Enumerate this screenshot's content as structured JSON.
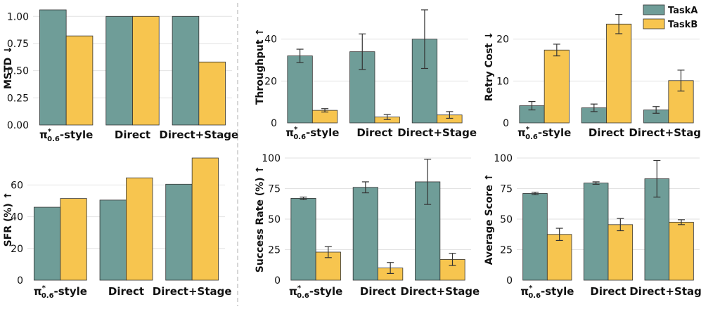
{
  "colors": {
    "TaskA": "#6f9d98",
    "TaskB": "#f7c54f",
    "errorbar": "#333333",
    "grid": "#e2e2e2",
    "separator": "#c8c8c8"
  },
  "legend": {
    "position": "top-right",
    "entries": [
      "TaskA",
      "TaskB"
    ]
  },
  "chart_data": [
    {
      "id": "mstd",
      "type": "bar",
      "ylabel": "MSTD ↓",
      "categories": [
        "π*0.6-style",
        "Direct",
        "Direct+Stage"
      ],
      "ylim": [
        0,
        1.06
      ],
      "yticks": [
        0.0,
        0.25,
        0.5,
        0.75,
        1.0
      ],
      "ytick_decimals": 2,
      "grid": true,
      "series": [
        {
          "name": "TaskA",
          "values": [
            1.06,
            1.0,
            1.0
          ]
        },
        {
          "name": "TaskB",
          "values": [
            0.82,
            1.0,
            0.58
          ]
        }
      ]
    },
    {
      "id": "throughput",
      "type": "bar",
      "ylabel": "Throughput ↑",
      "categories": [
        "π*0.6-style",
        "Direct",
        "Direct+Stage"
      ],
      "ylim": [
        0,
        54
      ],
      "yticks": [
        0,
        20,
        40
      ],
      "ytick_decimals": 0,
      "grid": true,
      "series": [
        {
          "name": "TaskA",
          "values": [
            32,
            34,
            40
          ],
          "errors": [
            3.2,
            8.5,
            14
          ]
        },
        {
          "name": "TaskB",
          "values": [
            6,
            2.8,
            3.8
          ],
          "errors": [
            0.8,
            1.2,
            1.6
          ]
        }
      ]
    },
    {
      "id": "retry-cost",
      "type": "bar",
      "ylabel": "Retry Cost ↓",
      "categories": [
        "π*0.6-style",
        "Direct",
        "Direct+Stage"
      ],
      "ylim": [
        0,
        27
      ],
      "yticks": [
        0,
        10,
        20
      ],
      "ytick_decimals": 0,
      "grid": true,
      "series": [
        {
          "name": "TaskA",
          "values": [
            4.1,
            3.6,
            3.1
          ],
          "errors": [
            1.0,
            0.9,
            0.8
          ]
        },
        {
          "name": "TaskB",
          "values": [
            17.4,
            23.6,
            10.1
          ],
          "errors": [
            1.4,
            2.3,
            2.5
          ]
        }
      ]
    },
    {
      "id": "sfr",
      "type": "bar",
      "ylabel": "SFR (%) ↑",
      "categories": [
        "π*0.6-style",
        "Direct",
        "Direct+Stage"
      ],
      "ylim": [
        0,
        77
      ],
      "yticks": [
        0,
        20,
        40,
        60
      ],
      "ytick_decimals": 0,
      "grid": true,
      "series": [
        {
          "name": "TaskA",
          "values": [
            46,
            50.5,
            60.5
          ]
        },
        {
          "name": "TaskB",
          "values": [
            51.5,
            64.5,
            77
          ]
        }
      ]
    },
    {
      "id": "success-rate",
      "type": "bar",
      "ylabel": "Success Rate (%) ↑",
      "categories": [
        "π*0.6-style",
        "Direct",
        "Direct+Stage"
      ],
      "ylim": [
        0,
        100
      ],
      "yticks": [
        0,
        25,
        50,
        75,
        100
      ],
      "ytick_decimals": 0,
      "grid": true,
      "series": [
        {
          "name": "TaskA",
          "values": [
            67,
            76,
            80.5
          ],
          "errors": [
            1.0,
            4.5,
            18.5
          ]
        },
        {
          "name": "TaskB",
          "values": [
            23,
            10,
            17
          ],
          "errors": [
            4.5,
            4.5,
            5
          ]
        }
      ]
    },
    {
      "id": "average-score",
      "type": "bar",
      "ylabel": "Average Score ↑",
      "categories": [
        "π*0.6-style",
        "Direct",
        "Direct+Stage"
      ],
      "ylim": [
        0,
        100
      ],
      "yticks": [
        0,
        25,
        50,
        75,
        100
      ],
      "ytick_decimals": 0,
      "grid": true,
      "series": [
        {
          "name": "TaskA",
          "values": [
            71,
            79.5,
            83
          ],
          "errors": [
            1.0,
            1.0,
            15
          ]
        },
        {
          "name": "TaskB",
          "values": [
            37.5,
            45.5,
            47.5
          ],
          "errors": [
            5,
            5,
            2
          ]
        }
      ]
    }
  ]
}
